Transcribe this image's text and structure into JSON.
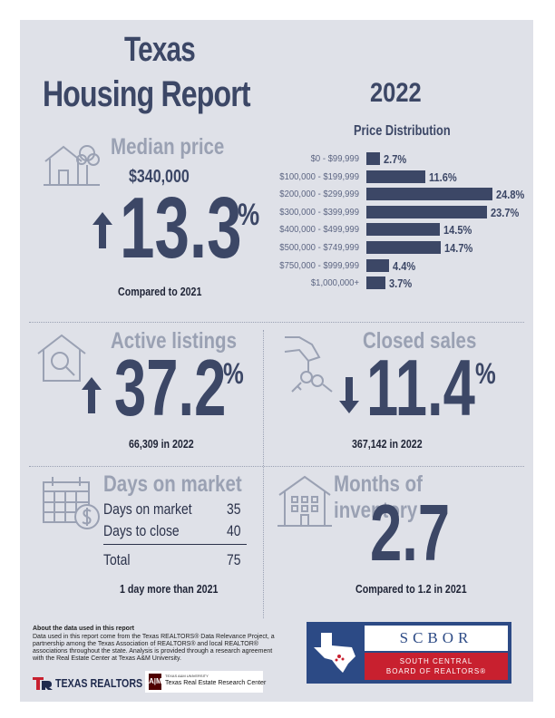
{
  "header": {
    "title_line1": "Texas",
    "title_line2": "Housing Report",
    "year": "2022"
  },
  "median_price": {
    "label": "Median price",
    "value": "$340,000",
    "change": "13.3",
    "pct_sign": "%",
    "direction": "up",
    "note": "Compared to 2021"
  },
  "price_distribution": {
    "title": "Price Distribution",
    "rows": [
      {
        "range": "$0 - $99,999",
        "value": "2.7%"
      },
      {
        "range": "$100,000 - $199,999",
        "value": "11.6%"
      },
      {
        "range": "$200,000 - $299,999",
        "value": "24.8%"
      },
      {
        "range": "$300,000 - $399,999",
        "value": "23.7%"
      },
      {
        "range": "$400,000 - $499,999",
        "value": "14.5%"
      },
      {
        "range": "$500,000 - $749,999",
        "value": "14.7%"
      },
      {
        "range": "$750,000 - $999,999",
        "value": "4.4%"
      },
      {
        "range": "$1,000,000+",
        "value": "3.7%"
      }
    ]
  },
  "chart_data": {
    "type": "bar",
    "categories": [
      "$0 - $99,999",
      "$100,000 - $199,999",
      "$200,000 - $299,999",
      "$300,000 - $399,999",
      "$400,000 - $499,999",
      "$500,000 - $749,999",
      "$750,000 - $999,999",
      "$1,000,000+"
    ],
    "values": [
      2.7,
      11.6,
      24.8,
      23.7,
      14.5,
      14.7,
      4.4,
      3.7
    ],
    "title": "Price Distribution",
    "xlabel": "",
    "ylabel": ""
  },
  "active_listings": {
    "label": "Active listings",
    "change": "37.2",
    "pct_sign": "%",
    "direction": "up",
    "note": "66,309 in 2022"
  },
  "closed_sales": {
    "label": "Closed sales",
    "change": "11.4",
    "pct_sign": "%",
    "direction": "down",
    "note": "367,142 in 2022"
  },
  "days_on_market": {
    "label": "Days on market",
    "rows": [
      {
        "label": "Days on market",
        "value": "35"
      },
      {
        "label": "Days to close",
        "value": "40"
      }
    ],
    "total_label": "Total",
    "total_value": "75",
    "note": "1 day more than 2021"
  },
  "months_inventory": {
    "label": "Months of inventory",
    "value": "2.7",
    "note": "Compared to 1.2 in 2021"
  },
  "about": {
    "heading": "About the data used in this report",
    "text": "Data used in this report come from the Texas REALTORS® Data Relevance Project, a partnership among the Texas Association of REALTORS® and local REALTOR® associations throughout the state. Analysis is provided through a research agreement with the Real Estate Center at Texas A&M University."
  },
  "logos": {
    "texas_realtors": "TEXAS REALTORS",
    "tamu_small": "TEXAS A&M UNIVERSITY",
    "tamu_center": "Texas Real Estate Research Center",
    "scbor_abbr": "SCBOR",
    "scbor_line1": "SOUTH CENTRAL",
    "scbor_line2": "BOARD OF REALTORS®"
  },
  "colors": {
    "navy": "#3c4766",
    "muted": "#9aa1b3",
    "background": "#dfe1e8",
    "red": "#c8202f"
  }
}
